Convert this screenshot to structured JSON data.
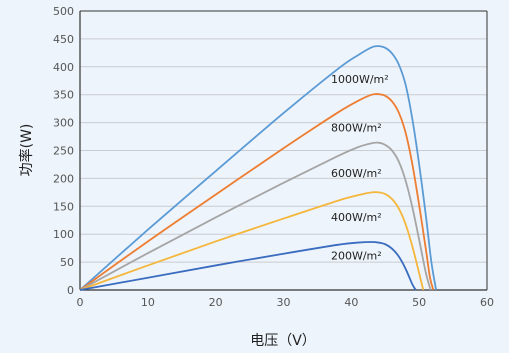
{
  "chart_data": {
    "type": "line",
    "title": "",
    "xlabel": "电压（V）",
    "ylabel": "功率(W)",
    "xlim": [
      0,
      60
    ],
    "ylim": [
      0,
      500
    ],
    "xticks": [
      0,
      10,
      20,
      30,
      40,
      50,
      60
    ],
    "yticks": [
      0,
      50,
      100,
      150,
      200,
      250,
      300,
      350,
      400,
      450,
      500
    ],
    "grid": "horizontal",
    "background": "#eef4fb",
    "series": [
      {
        "name": "1000W/m²",
        "color": "#5b9bd5",
        "x": [
          0,
          10,
          20,
          30,
          38,
          41,
          43,
          44,
          45,
          46,
          47,
          48,
          49,
          50,
          51,
          51.8,
          52.5
        ],
        "y": [
          0,
          108,
          213,
          317,
          396,
          421,
          435,
          437,
          434,
          424,
          404,
          368,
          306,
          225,
          132,
          50,
          0
        ]
      },
      {
        "name": "800W/m²",
        "color": "#ed7d31",
        "x": [
          0,
          10,
          20,
          30,
          38,
          41,
          43,
          44,
          45,
          46,
          47,
          48,
          49,
          50,
          51,
          51.6,
          52.1
        ],
        "y": [
          0,
          87,
          171,
          254,
          318,
          339,
          350,
          351,
          348,
          338,
          318,
          282,
          225,
          152,
          72,
          22,
          0
        ]
      },
      {
        "name": "600W/m²",
        "color": "#a5a5a5",
        "x": [
          0,
          10,
          20,
          30,
          38,
          41,
          43,
          44,
          45,
          46,
          47,
          48,
          49,
          50,
          51,
          51.7
        ],
        "y": [
          0,
          66,
          130,
          192,
          240,
          256,
          263,
          264,
          260,
          250,
          230,
          196,
          148,
          90,
          30,
          0
        ]
      },
      {
        "name": "400W/m²",
        "color": "#f5b63c",
        "x": [
          0,
          10,
          20,
          30,
          38,
          41,
          43,
          44,
          45,
          46,
          47,
          48,
          49,
          50,
          50.6
        ],
        "y": [
          0,
          44,
          87,
          128,
          160,
          170,
          175,
          175,
          172,
          163,
          146,
          118,
          78,
          30,
          0
        ]
      },
      {
        "name": "200W/m²",
        "color": "#3a6cc0",
        "x": [
          0,
          10,
          20,
          30,
          38,
          41,
          43,
          44,
          45,
          46,
          47,
          48,
          49,
          49.5
        ],
        "y": [
          0,
          22,
          44,
          65,
          81,
          85,
          86,
          85,
          82,
          74,
          60,
          38,
          10,
          0
        ]
      }
    ]
  }
}
